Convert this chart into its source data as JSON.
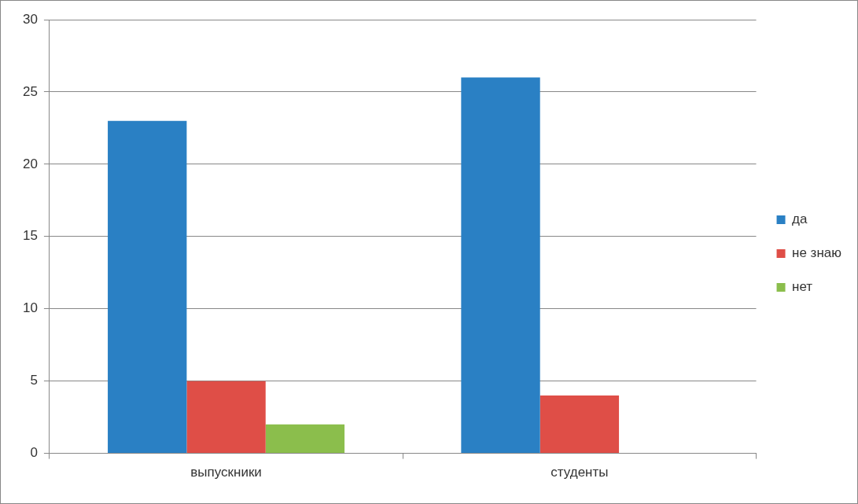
{
  "chart_data": {
    "type": "bar",
    "categories": [
      "выпускники",
      "студенты"
    ],
    "series": [
      {
        "name": "да",
        "color": "#2a80c4",
        "values": [
          23,
          26
        ]
      },
      {
        "name": "не знаю",
        "color": "#df4e47",
        "values": [
          5,
          4
        ]
      },
      {
        "name": "нет",
        "color": "#8bbe4c",
        "values": [
          2,
          0
        ]
      }
    ],
    "ylim": [
      0,
      30
    ],
    "yticks": [
      0,
      5,
      10,
      15,
      20,
      25,
      30
    ],
    "grid": "y",
    "legend": "right"
  }
}
